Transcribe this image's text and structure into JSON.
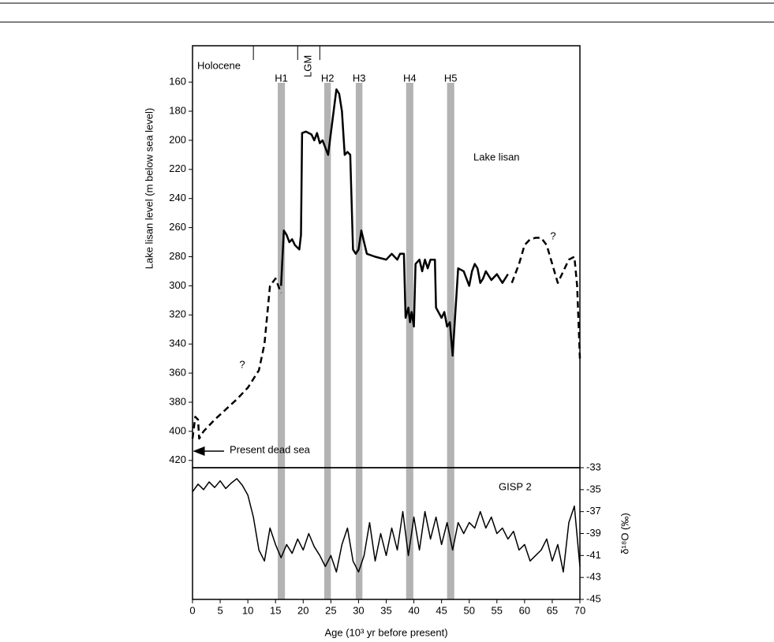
{
  "chart_data": [
    {
      "type": "line",
      "ylabel": "Lake lisan level (m below sea level)",
      "xlim": [
        0,
        70
      ],
      "ylim": [
        425,
        135
      ],
      "yticks": [
        160,
        180,
        200,
        220,
        240,
        260,
        280,
        300,
        320,
        340,
        360,
        380,
        400,
        420
      ],
      "zones": [
        {
          "label": "Holocene",
          "start": 0,
          "end": 11
        },
        {
          "label": "LGM",
          "start": 19,
          "end": 23
        }
      ],
      "events": [
        {
          "label": "H1",
          "start": 15.4,
          "end": 16.7
        },
        {
          "label": "H2",
          "start": 23.8,
          "end": 25.0
        },
        {
          "label": "H3",
          "start": 29.5,
          "end": 30.7
        },
        {
          "label": "H4",
          "start": 38.6,
          "end": 39.9
        },
        {
          "label": "H5",
          "start": 46.0,
          "end": 47.3
        }
      ],
      "event_color": "#b3b3b3",
      "annotations": [
        "Lake lisan",
        "?",
        "?",
        "Present dead sea"
      ],
      "series": [
        {
          "color": "#000000",
          "dashed": true,
          "x": [
            0,
            0.5,
            1,
            1.2,
            2,
            4,
            6,
            8,
            10,
            12,
            13,
            14,
            15,
            16
          ],
          "values": [
            405,
            390,
            392,
            405,
            400,
            392,
            385,
            378,
            370,
            358,
            340,
            300,
            295,
            305
          ]
        },
        {
          "color": "#000000",
          "dashed": false,
          "x": [
            16,
            16.5,
            17,
            17.5,
            18,
            18.5,
            19.3,
            19.6,
            19.8,
            20.5,
            21.5,
            22,
            22.5,
            23,
            23.5,
            24,
            24.5,
            25,
            25.5,
            26,
            26.5,
            27,
            27.5,
            28,
            28.5,
            29,
            29.5,
            30,
            30.5,
            31,
            31.5,
            33,
            35,
            36,
            37,
            37.5,
            38.2,
            38.5,
            39,
            39.3,
            39.6,
            40,
            40.3,
            41,
            41.5,
            42,
            42.5,
            43,
            43.8,
            44,
            45,
            45.5,
            46,
            46.5,
            47,
            47.5,
            48,
            49,
            50,
            50.5,
            51,
            51.5,
            52,
            52.5,
            53,
            54,
            55,
            56,
            57
          ],
          "values": [
            300,
            262,
            265,
            270,
            268,
            272,
            275,
            265,
            195,
            194,
            196,
            200,
            195,
            202,
            200,
            205,
            210,
            195,
            180,
            165,
            168,
            180,
            210,
            208,
            210,
            275,
            278,
            275,
            262,
            270,
            278,
            280,
            282,
            278,
            282,
            278,
            278,
            322,
            315,
            325,
            318,
            328,
            285,
            282,
            290,
            282,
            288,
            282,
            282,
            315,
            322,
            318,
            328,
            325,
            348,
            318,
            288,
            290,
            300,
            290,
            285,
            288,
            298,
            295,
            290,
            296,
            292,
            298,
            292
          ]
        },
        {
          "color": "#000000",
          "dashed": true,
          "x": [
            57.7,
            59,
            60,
            61,
            62,
            63,
            64,
            65,
            66,
            67,
            68,
            69,
            69.5,
            70
          ],
          "values": [
            298,
            285,
            272,
            268,
            267,
            267,
            272,
            285,
            298,
            290,
            282,
            280,
            300,
            350
          ]
        }
      ]
    },
    {
      "type": "line",
      "xlabel": "Age (10³ yr before present)",
      "y2label": "δ¹⁸O (‰)",
      "label": "GISP 2",
      "xlim": [
        0,
        70
      ],
      "y2lim": [
        -45,
        -33
      ],
      "xticks": [
        0,
        5,
        10,
        15,
        20,
        25,
        30,
        35,
        40,
        45,
        50,
        55,
        60,
        65,
        70
      ],
      "y2ticks": [
        -33,
        -35,
        -37,
        -39,
        -41,
        -43,
        -45
      ],
      "series": [
        {
          "color": "#000000",
          "axis": "y2",
          "x": [
            0,
            1,
            2,
            3,
            4,
            5,
            6,
            7,
            8,
            9,
            10,
            11,
            12,
            13,
            14,
            15,
            16,
            17,
            18,
            19,
            20,
            21,
            22,
            23,
            24,
            25,
            26,
            27,
            28,
            29,
            30,
            31,
            32,
            33,
            34,
            35,
            36,
            37,
            38,
            39,
            40,
            41,
            42,
            43,
            44,
            45,
            46,
            47,
            48,
            49,
            50,
            51,
            52,
            53,
            54,
            55,
            56,
            57,
            58,
            59,
            60,
            61,
            62,
            63,
            64,
            65,
            66,
            67,
            68,
            69,
            70
          ],
          "values": [
            -35.2,
            -34.5,
            -35.0,
            -34.3,
            -34.8,
            -34.2,
            -34.9,
            -34.4,
            -34.0,
            -34.6,
            -35.5,
            -37.5,
            -40.5,
            -41.5,
            -38.5,
            -40.0,
            -41.2,
            -40.0,
            -40.8,
            -39.5,
            -40.5,
            -39.0,
            -40.2,
            -41.0,
            -42.0,
            -41.0,
            -42.5,
            -40.0,
            -38.5,
            -41.5,
            -42.5,
            -41.0,
            -38.0,
            -41.5,
            -39.0,
            -41.0,
            -38.5,
            -40.5,
            -37.0,
            -41.0,
            -37.5,
            -40.5,
            -37.0,
            -39.5,
            -37.5,
            -40.0,
            -38.0,
            -40.5,
            -38.0,
            -39.0,
            -38.0,
            -38.5,
            -37.0,
            -38.5,
            -37.5,
            -39.0,
            -38.5,
            -39.5,
            -38.8,
            -40.5,
            -40.0,
            -41.5,
            -41.0,
            -40.5,
            -39.5,
            -41.5,
            -40.0,
            -42.5,
            -38.0,
            -36.5,
            -42.0
          ]
        }
      ]
    }
  ]
}
